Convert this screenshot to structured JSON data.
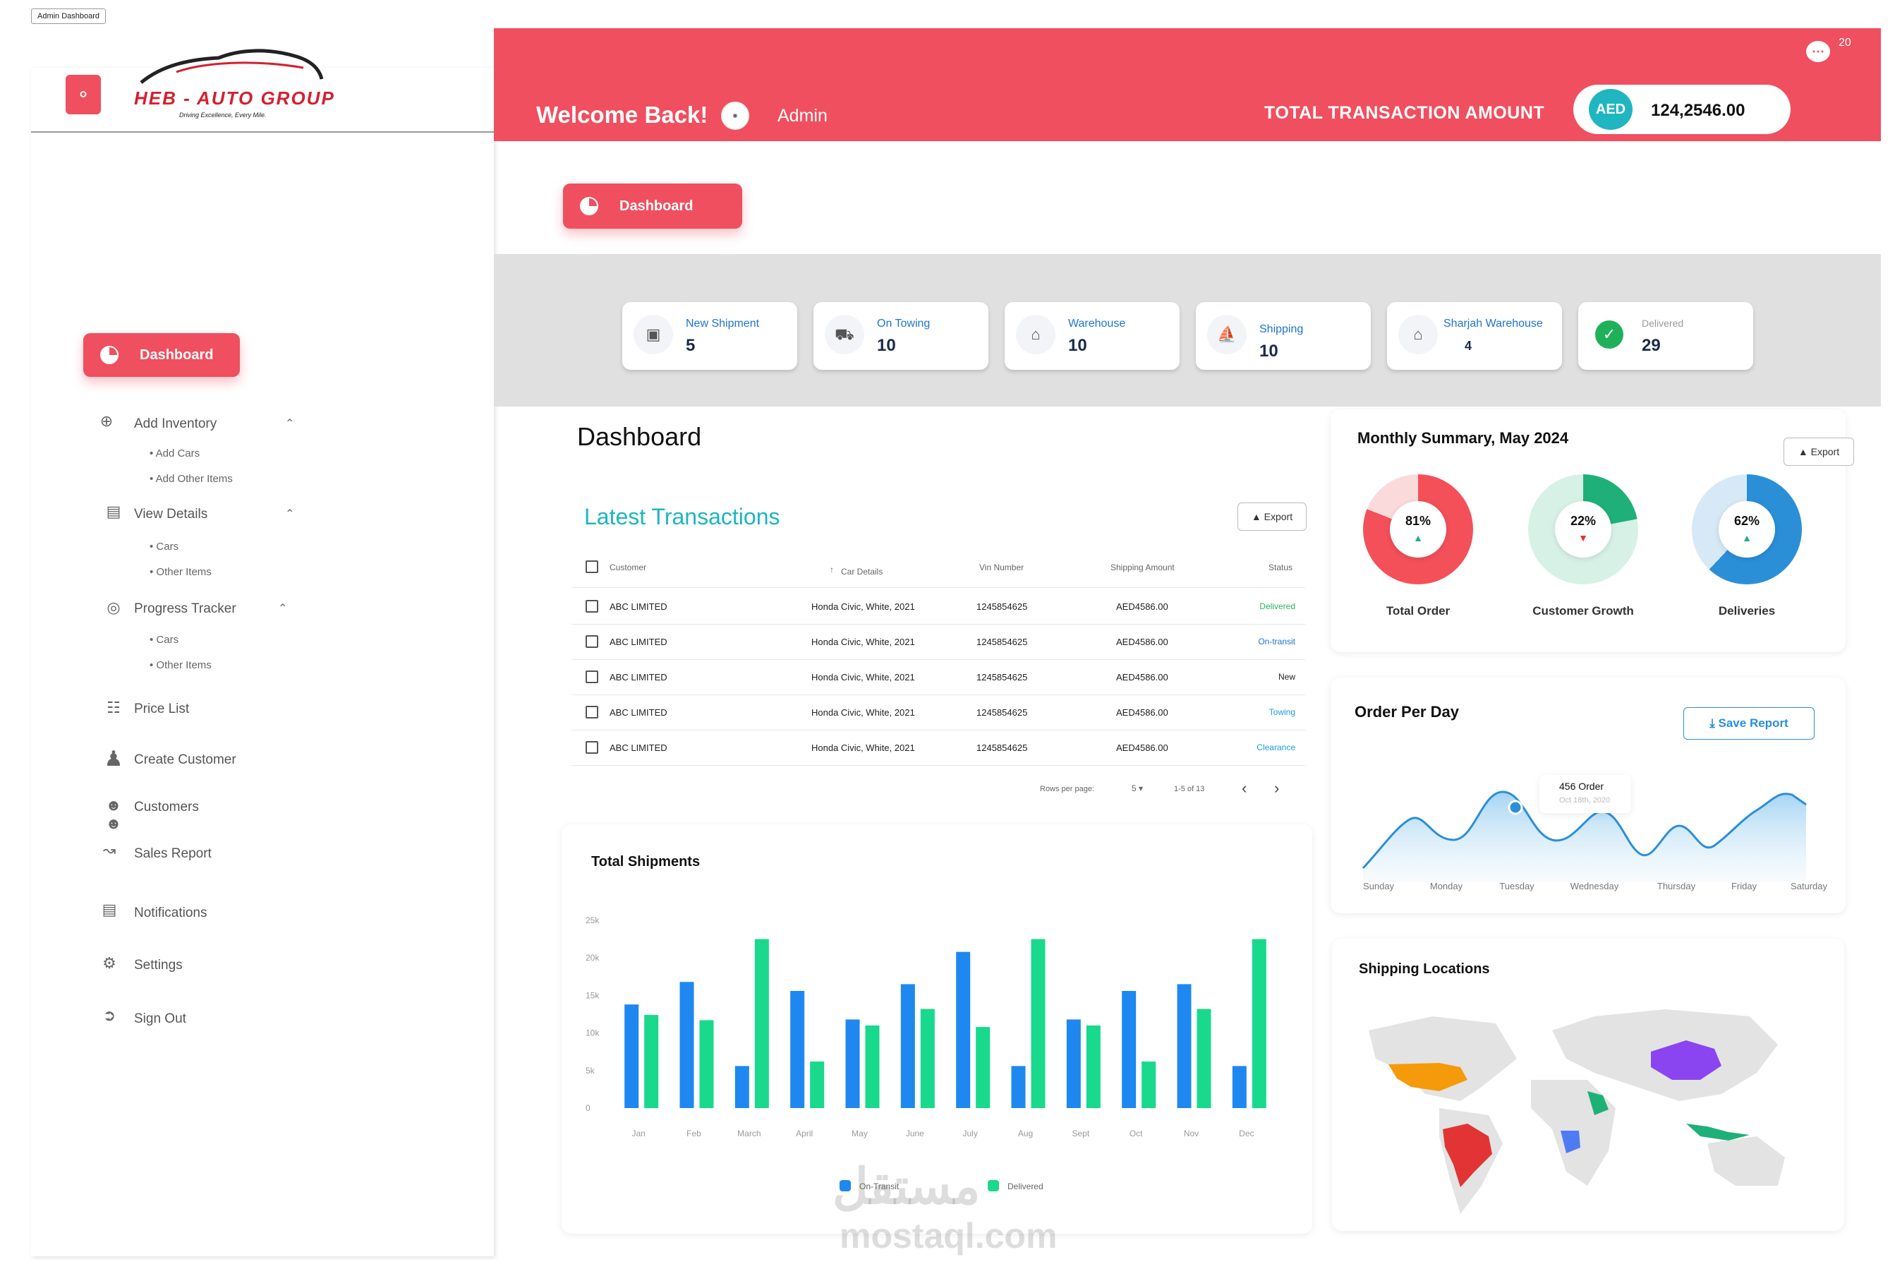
{
  "window": {
    "tab_label": "Admin Dashboard"
  },
  "brand": {
    "name": "HEB - AUTO GROUP",
    "tagline": "Driving Excellence, Every Mile.",
    "accent": "#ef4f5f",
    "teal": "#1cb6c0"
  },
  "header": {
    "welcome": "Welcome Back!",
    "user": "Admin",
    "total_label": "TOTAL TRANSACTION AMOUNT",
    "currency": "AED",
    "total_value": "124,2546.00",
    "notifications": "20"
  },
  "top_button": "Dashboard",
  "stats": [
    {
      "label": "New Shipment",
      "value": "5",
      "icon": "box-icon"
    },
    {
      "label": "On Towing",
      "value": "10",
      "icon": "tow-truck-icon"
    },
    {
      "label": "Warehouse",
      "value": "10",
      "icon": "warehouse-icon"
    },
    {
      "label": "Shipping",
      "value": "10",
      "icon": "ship-icon"
    },
    {
      "label": "Sharjah Warehouse",
      "value": "4",
      "icon": "warehouse-icon"
    },
    {
      "label": "Delivered",
      "value": "29",
      "icon": "check-icon"
    }
  ],
  "sidebar": {
    "active": "Dashboard",
    "items": [
      {
        "label": "Add Inventory",
        "children": [
          "Add Cars",
          "Add Other Items"
        ]
      },
      {
        "label": "View Details",
        "children": [
          "Cars",
          "Other Items"
        ]
      },
      {
        "label": "Progress Tracker",
        "children": [
          "Cars",
          "Other Items"
        ]
      },
      {
        "label": "Price List"
      },
      {
        "label": "Create Customer"
      },
      {
        "label": "Customers"
      },
      {
        "label": "Sales Report"
      },
      {
        "label": "Notifications"
      },
      {
        "label": "Settings"
      },
      {
        "label": "Sign Out"
      }
    ]
  },
  "main": {
    "title": "Dashboard"
  },
  "transactions": {
    "title": "Latest Transactions",
    "export": "Export",
    "columns": [
      "Customer",
      "Car Details",
      "Vin Number",
      "Shipping Amount",
      "Status"
    ],
    "rows": [
      {
        "customer": "ABC LIMITED",
        "car": "Honda Civic, White, 2021",
        "vin": "1245854625",
        "amount": "AED4586.00",
        "status": "Delivered",
        "status_color": "#2fb35a"
      },
      {
        "customer": "ABC LIMITED",
        "car": "Honda Civic, White, 2021",
        "vin": "1245854625",
        "amount": "AED4586.00",
        "status": "On-transit",
        "status_color": "#1e74d0"
      },
      {
        "customer": "ABC LIMITED",
        "car": "Honda Civic, White, 2021",
        "vin": "1245854625",
        "amount": "AED4586.00",
        "status": "New",
        "status_color": "#222222"
      },
      {
        "customer": "ABC LIMITED",
        "car": "Honda Civic, White, 2021",
        "vin": "1245854625",
        "amount": "AED4586.00",
        "status": "Towing",
        "status_color": "#1e9be0"
      },
      {
        "customer": "ABC LIMITED",
        "car": "Honda Civic, White, 2021",
        "vin": "1245854625",
        "amount": "AED4586.00",
        "status": "Clearance",
        "status_color": "#1e9be0"
      }
    ],
    "rows_per_page_label": "Rows per page:",
    "rows_per_page": "5",
    "range": "1-5 of 13"
  },
  "monthly": {
    "title": "Monthly Summary, May 2024",
    "export": "Export",
    "donuts": [
      {
        "label": "Total Order",
        "percent": 81,
        "text": "81%",
        "color": "#f4505a",
        "track": "#fbdadc",
        "trend": "up"
      },
      {
        "label": "Customer Growth",
        "percent": 22,
        "text": "22%",
        "color": "#1fb07a",
        "track": "#d8f1e7",
        "trend": "down"
      },
      {
        "label": "Deliveries",
        "percent": 62,
        "text": "62%",
        "color": "#2b8fd8",
        "track": "#d7e9f7",
        "trend": "up"
      }
    ]
  },
  "order_per_day": {
    "title": "Order Per Day",
    "save": "Save Report",
    "tooltip_value": "456 Order",
    "tooltip_date": "Oct 18th, 2020",
    "days": [
      "Sunday",
      "Monday",
      "Tuesday",
      "Wednesday",
      "Thursday",
      "Friday",
      "Saturday"
    ]
  },
  "chart_data": {
    "type": "bar",
    "title": "Total Shipments",
    "categories": [
      "Jan",
      "Feb",
      "March",
      "April",
      "May",
      "June",
      "July",
      "Aug",
      "Sept",
      "Oct",
      "Nov",
      "Dec"
    ],
    "ylim": [
      0,
      25000
    ],
    "yticks": [
      "0",
      "5k",
      "10k",
      "15k",
      "20k",
      "25k"
    ],
    "series": [
      {
        "name": "On-Transit",
        "color": "#1e88f0",
        "values": [
          13800,
          16800,
          5600,
          15600,
          11800,
          16500,
          20800,
          5600,
          11800,
          15600,
          16500,
          5600
        ]
      },
      {
        "name": "Delivered",
        "color": "#19d98c",
        "values": [
          12400,
          11700,
          22500,
          6200,
          11000,
          13200,
          10800,
          22500,
          11000,
          6200,
          13200,
          22500
        ]
      }
    ],
    "legend": "bottom",
    "grid": false
  },
  "shipping": {
    "title": "Shipping Locations"
  },
  "watermark": {
    "ar": "مستقل",
    "en": "mostaql.com"
  }
}
